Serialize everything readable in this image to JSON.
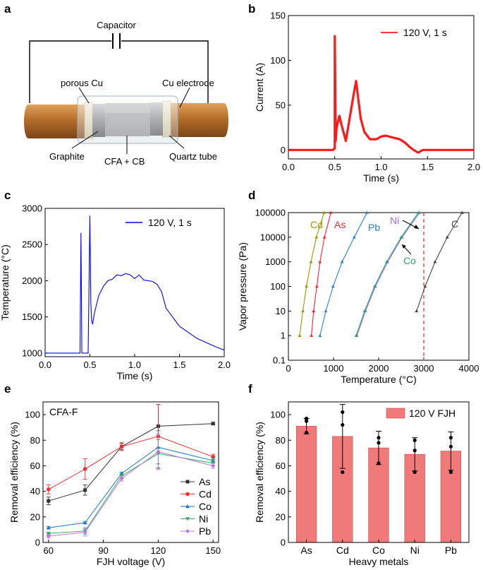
{
  "panels": {
    "a": {
      "letter": "a",
      "labels": {
        "capacitor": "Capacitor",
        "porous_cu": "porous Cu",
        "cu_electrode": "Cu electrode",
        "graphite": "Graphite",
        "cfa_cb": "CFA + CB",
        "quartz_tube": "Quartz tube"
      }
    },
    "b": {
      "letter": "b"
    },
    "c": {
      "letter": "c"
    },
    "d": {
      "letter": "d"
    },
    "e": {
      "letter": "e"
    },
    "f": {
      "letter": "f"
    }
  },
  "colors": {
    "current": "#ff0000",
    "temperature": "#0000ff",
    "As": "#333333",
    "Cd": "#ee3333",
    "Co": "#2277bb",
    "Ni": "#33aa66",
    "Pb": "#bb77dd",
    "vp_Cd": "#999900",
    "vp_As": "#ff2233",
    "vp_Pb": "#2a7fd0",
    "vp_Ni": "#aa66ee",
    "vp_Co": "#22aa66",
    "vp_C": "#444444",
    "bar_fill": "#f07a7a",
    "copper": "#c27a2c",
    "dashed_line": "#ee2222"
  },
  "chart_data": [
    {
      "panel": "b",
      "type": "line",
      "xlabel": "Time (s)",
      "ylabel": "Current (A)",
      "xlim": [
        0,
        2.0
      ],
      "ylim": [
        -10,
        150
      ],
      "xticks": [
        "0.0",
        "0.5",
        "1.0",
        "1.5",
        "2.0"
      ],
      "yticks": [
        "0",
        "50",
        "100",
        "150"
      ],
      "legend": "120 V, 1 s",
      "legend_position": "top-right",
      "series": [
        {
          "name": "120 V, 1 s",
          "x": [
            0,
            0.48,
            0.5,
            0.5,
            0.51,
            0.52,
            0.55,
            0.58,
            0.62,
            0.66,
            0.7,
            0.73,
            0.75,
            0.78,
            0.82,
            0.88,
            0.95,
            1.0,
            1.05,
            1.12,
            1.2,
            1.26,
            1.3,
            1.35,
            1.4,
            1.45,
            2.0
          ],
          "y": [
            0,
            0,
            2,
            127,
            10,
            25,
            38,
            25,
            10,
            35,
            60,
            77,
            60,
            35,
            20,
            12,
            12,
            15,
            16,
            14,
            12,
            8,
            4,
            0,
            -3,
            0,
            0
          ]
        }
      ]
    },
    {
      "panel": "c",
      "type": "line",
      "xlabel": "Time (s)",
      "ylabel": "Temperature (°C)",
      "xlim": [
        0,
        2.0
      ],
      "ylim": [
        950,
        3000
      ],
      "xticks": [
        "0.0",
        "0.5",
        "1.0",
        "1.5",
        "2.0"
      ],
      "yticks": [
        "1000",
        "1500",
        "2000",
        "2500",
        "3000"
      ],
      "legend": "120 V, 1 s",
      "legend_position": "top-right",
      "series": [
        {
          "name": "120 V, 1 s",
          "x": [
            0,
            0.39,
            0.4,
            0.41,
            0.48,
            0.49,
            0.5,
            0.51,
            0.52,
            0.53,
            0.55,
            0.57,
            0.6,
            0.65,
            0.7,
            0.75,
            0.8,
            0.85,
            0.9,
            0.95,
            1.0,
            1.05,
            1.1,
            1.15,
            1.2,
            1.25,
            1.3,
            1.35,
            1.5,
            1.7,
            1.9,
            2.0
          ],
          "y": [
            1000,
            1000,
            2660,
            1000,
            1000,
            1900,
            2900,
            1700,
            1450,
            1400,
            1550,
            1650,
            1800,
            1920,
            2000,
            2020,
            2080,
            2070,
            2100,
            2080,
            2030,
            2080,
            2010,
            2000,
            1990,
            1950,
            1850,
            1620,
            1370,
            1200,
            1090,
            1040
          ]
        }
      ]
    },
    {
      "panel": "d",
      "type": "line",
      "xlabel": "Temperature (°C)",
      "ylabel": "Vapor pressure (Pa)",
      "xlim": [
        0,
        4000
      ],
      "ylim": [
        0.1,
        100000
      ],
      "yscale": "log",
      "xticks": [
        "0",
        "1000",
        "2000",
        "3000",
        "4000"
      ],
      "yticks": [
        "0.1",
        "1",
        "10",
        "100",
        "1000",
        "10000",
        "100000"
      ],
      "vline": 3000,
      "series": [
        {
          "name": "Cd",
          "x": [
            250,
            320,
            400,
            500,
            620,
            790
          ],
          "y": [
            1,
            10,
            100,
            1000,
            10000,
            100000
          ]
        },
        {
          "name": "As",
          "x": [
            510,
            560,
            630,
            700,
            800,
            940
          ],
          "y": [
            1,
            10,
            100,
            1000,
            10000,
            100000
          ]
        },
        {
          "name": "Pb",
          "x": [
            700,
            830,
            990,
            1190,
            1460,
            1740
          ],
          "y": [
            1,
            10,
            100,
            1000,
            10000,
            100000
          ]
        },
        {
          "name": "Ni",
          "x": [
            1520,
            1710,
            1930,
            2200,
            2520,
            2910
          ],
          "y": [
            1,
            10,
            100,
            1000,
            10000,
            100000
          ]
        },
        {
          "name": "Co",
          "x": [
            1500,
            1690,
            1910,
            2180,
            2500,
            2880
          ],
          "y": [
            1,
            10,
            100,
            1000,
            10000,
            100000
          ]
        },
        {
          "name": "C",
          "x": [
            2840,
            3030,
            3250,
            3520,
            3850
          ],
          "y": [
            10,
            100,
            1000,
            10000,
            100000
          ]
        }
      ]
    },
    {
      "panel": "e",
      "type": "line",
      "title": "CFA-F",
      "xlabel": "FJH voltage (V)",
      "ylabel": "Removal efficiency (%)",
      "xlim": [
        57,
        153
      ],
      "ylim": [
        0,
        110
      ],
      "xticks": [
        "60",
        "90",
        "120",
        "150"
      ],
      "yticks": [
        "0",
        "20",
        "40",
        "60",
        "80",
        "100"
      ],
      "legend_position": "bottom-right",
      "x": [
        60,
        80,
        100,
        120,
        150
      ],
      "series": [
        {
          "name": "As",
          "values": [
            32.5,
            41,
            75,
            91,
            93
          ],
          "err": [
            3,
            4,
            2.5,
            17,
            1
          ]
        },
        {
          "name": "Cd",
          "values": [
            41.5,
            57.5,
            75,
            83,
            67
          ],
          "err": [
            3.5,
            8,
            3,
            25,
            2
          ]
        },
        {
          "name": "Co",
          "values": [
            11.5,
            15.5,
            54,
            74.5,
            64
          ],
          "err": [
            1,
            1,
            1,
            13,
            2
          ]
        },
        {
          "name": "Ni",
          "values": [
            7,
            9,
            52,
            69.5,
            62
          ],
          "err": [
            1,
            2.5,
            2,
            11,
            2
          ]
        },
        {
          "name": "Pb",
          "values": [
            5,
            8,
            50,
            71,
            60
          ],
          "err": [
            1.5,
            3,
            2,
            14,
            2
          ]
        }
      ]
    },
    {
      "panel": "f",
      "type": "bar",
      "xlabel": "Heavy metals",
      "ylabel": "Removal efficiency (%)",
      "ylim": [
        0,
        110
      ],
      "yticks": [
        "0",
        "20",
        "40",
        "60",
        "80",
        "100"
      ],
      "legend": "120 V FJH",
      "legend_position": "top-right",
      "categories": [
        "As",
        "Cd",
        "Co",
        "Ni",
        "Pb"
      ],
      "values": [
        91,
        83,
        74,
        69,
        71.5
      ],
      "err": [
        6,
        25,
        13,
        13,
        15
      ],
      "points": [
        [
          95,
          97,
          86
        ],
        [
          55,
          102,
          92
        ],
        [
          62,
          82,
          78
        ],
        [
          55,
          80,
          72
        ],
        [
          55,
          82,
          75
        ]
      ]
    }
  ]
}
